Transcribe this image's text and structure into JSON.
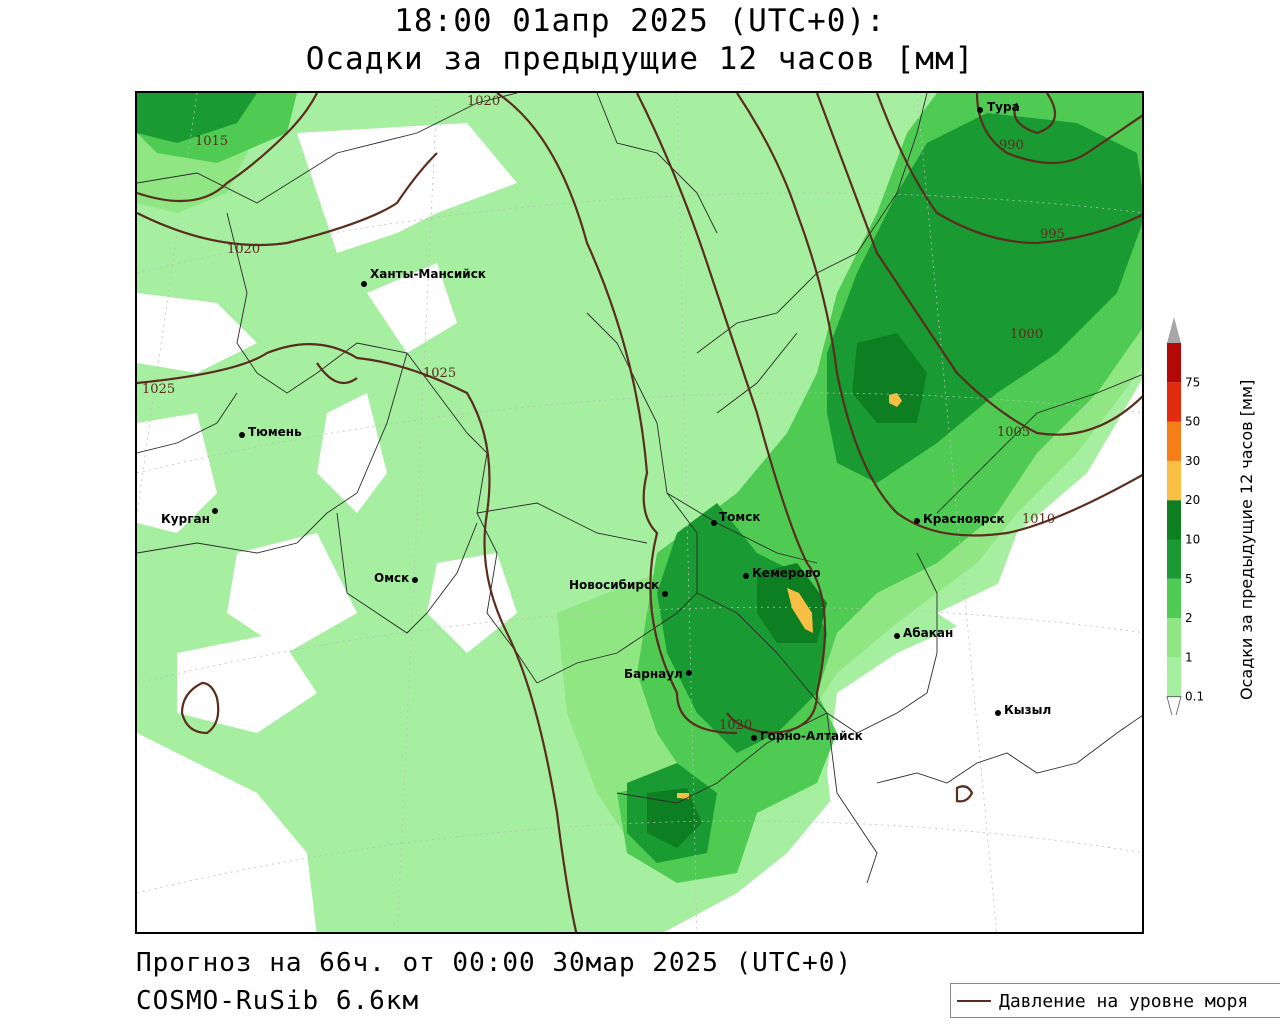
{
  "header": {
    "title_line1": "18:00 01апр 2025 (UTC+0):",
    "title_line2": "Осадки за предыдущие 12 часов [мм]"
  },
  "footer": {
    "forecast": "Прогноз на 66ч. от 00:00 30мар 2025 (UTC+0)",
    "model": "COSMO-RuSib 6.6км"
  },
  "legend": {
    "isobar_label": "Давление на уровне моря",
    "isobar_color": "#5a2d1e"
  },
  "colorbar": {
    "title": "Осадки за предыдущие 12 часов [мм]",
    "ticks": [
      "0.1",
      "1",
      "2",
      "5",
      "10",
      "20",
      "30",
      "50",
      "75"
    ],
    "colors": [
      "#a6eea0",
      "#8fe683",
      "#4fcb53",
      "#199a32",
      "#0d7f22",
      "#f9bf44",
      "#f57f16",
      "#e12b0c",
      "#b40808",
      "#a7a7a7"
    ]
  },
  "cities": [
    {
      "name": "Тура"
    },
    {
      "name": "Ханты-Мансийск"
    },
    {
      "name": "Тюмень"
    },
    {
      "name": "Курган"
    },
    {
      "name": "Омск"
    },
    {
      "name": "Новосибирск"
    },
    {
      "name": "Томск"
    },
    {
      "name": "Кемерово"
    },
    {
      "name": "Красноярск"
    },
    {
      "name": "Абакан"
    },
    {
      "name": "Барнаул"
    },
    {
      "name": "Горно-Алтайск"
    },
    {
      "name": "Кызыл"
    }
  ],
  "isobar_labels": [
    "1020",
    "1015",
    "1020",
    "1025",
    "1025",
    "990",
    "995",
    "1000",
    "1005",
    "1010",
    "1020"
  ]
}
